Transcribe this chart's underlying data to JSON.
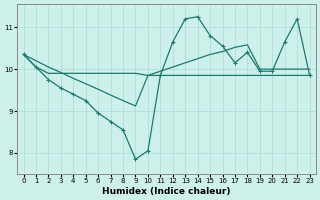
{
  "xlabel": "Humidex (Indice chaleur)",
  "background_color": "#cef0ea",
  "grid_color": "#a8ddd7",
  "line_color": "#1a7a6e",
  "xlim": [
    -0.5,
    23.5
  ],
  "ylim": [
    7.5,
    11.55
  ],
  "yticks": [
    8,
    9,
    10,
    11
  ],
  "xticks": [
    0,
    1,
    2,
    3,
    4,
    5,
    6,
    7,
    8,
    9,
    10,
    11,
    12,
    13,
    14,
    15,
    16,
    17,
    18,
    19,
    20,
    21,
    22,
    23
  ],
  "line1_x": [
    0,
    1,
    2,
    3,
    4,
    5,
    6,
    7,
    8,
    9,
    10,
    11,
    12,
    13,
    14,
    15,
    16,
    17,
    18,
    19,
    20,
    21,
    22,
    23
  ],
  "line1_y": [
    10.35,
    10.2,
    10.05,
    9.92,
    9.78,
    9.65,
    9.52,
    9.38,
    9.25,
    9.12,
    9.85,
    9.95,
    10.05,
    10.15,
    10.25,
    10.35,
    10.42,
    10.52,
    10.58,
    10.0,
    10.0,
    10.0,
    10.0,
    10.0
  ],
  "line2_x": [
    0,
    1,
    2,
    3,
    4,
    5,
    6,
    7,
    8,
    9,
    10,
    11,
    12,
    13,
    14,
    15,
    16,
    17,
    18,
    19,
    20,
    21,
    22,
    23
  ],
  "line2_y": [
    10.35,
    10.05,
    9.75,
    9.55,
    9.4,
    9.25,
    8.95,
    8.75,
    8.55,
    7.85,
    8.05,
    9.85,
    10.65,
    11.2,
    11.25,
    10.8,
    10.55,
    10.15,
    10.4,
    9.95,
    9.95,
    10.65,
    11.2,
    9.85
  ],
  "line3_x": [
    0,
    1,
    2,
    3,
    4,
    5,
    6,
    7,
    8,
    9,
    10,
    11,
    12,
    13,
    14,
    15,
    16,
    17,
    18,
    19,
    20,
    21,
    22,
    23
  ],
  "line3_y": [
    10.35,
    10.05,
    9.9,
    9.9,
    9.9,
    9.9,
    9.9,
    9.9,
    9.9,
    9.9,
    9.85,
    9.85,
    9.85,
    9.85,
    9.85,
    9.85,
    9.85,
    9.85,
    9.85,
    9.85,
    9.85,
    9.85,
    9.85,
    9.85
  ]
}
